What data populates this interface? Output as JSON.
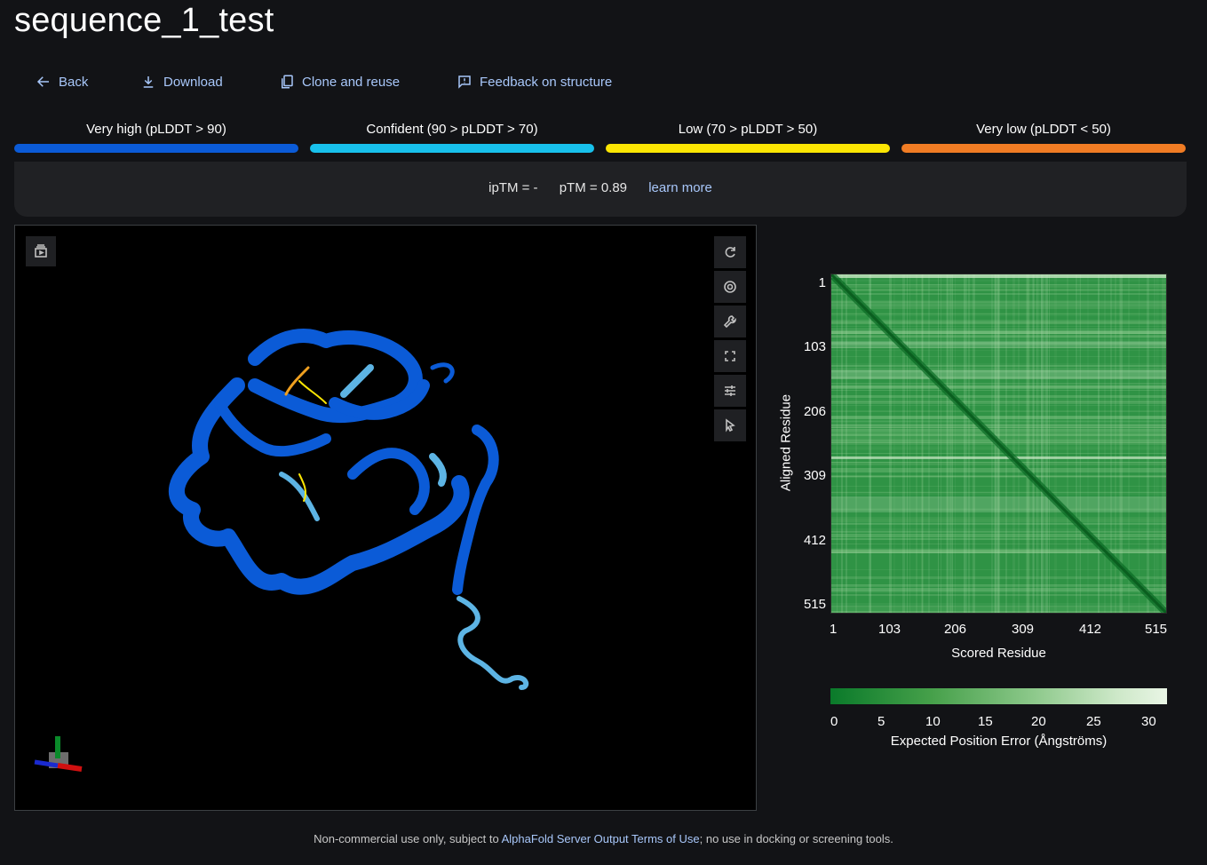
{
  "page": {
    "title": "sequence_1_test"
  },
  "actions": {
    "back": "Back",
    "download": "Download",
    "clone": "Clone and reuse",
    "feedback": "Feedback on structure"
  },
  "plddt_legend": [
    {
      "label": "Very high (pLDDT > 90)",
      "color": "#0b5bd7"
    },
    {
      "label": "Confident (90 > pLDDT > 70)",
      "color": "#18c1ec"
    },
    {
      "label": "Low (70 > pLDDT > 50)",
      "color": "#fce603"
    },
    {
      "label": "Very low (pLDDT < 50)",
      "color": "#f07c24"
    }
  ],
  "scores": {
    "iptm": "ipTM = -",
    "ptm": "pTM = 0.89",
    "learn_more": "learn more"
  },
  "viewer": {
    "toolbar_icons": [
      "rotate-icon",
      "aperture-icon",
      "wrench-icon",
      "expand-icon",
      "sliders-icon",
      "pointer-icon"
    ],
    "toggle_icon": "panel-toggle-icon"
  },
  "pae": {
    "y_ticks": [
      "1",
      "103",
      "206",
      "309",
      "412",
      "515"
    ],
    "x_ticks": [
      "1",
      "103",
      "206",
      "309",
      "412",
      "515"
    ],
    "ylabel": "Aligned Residue",
    "xlabel": "Scored Residue",
    "colorbar_ticks": [
      "0",
      "5",
      "10",
      "15",
      "20",
      "25",
      "30"
    ],
    "colorbar_label": "Expected Position Error (Ångströms)"
  },
  "footer": {
    "prefix": "Non-commercial use only, subject to ",
    "link": "AlphaFold Server Output Terms of Use",
    "suffix": "; no use in docking or screening tools."
  }
}
